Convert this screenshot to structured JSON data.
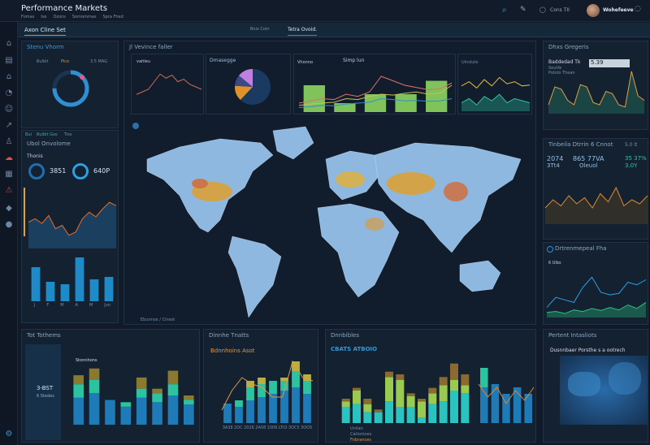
{
  "header": {
    "title": "Performance Markets",
    "subnav": [
      "Fomas",
      "Ise",
      "Ozons",
      "Somommas",
      "Spra Fhed"
    ],
    "notify_label": "Cons TII",
    "username": "Wohefeeve"
  },
  "tabbar": {
    "left_tab": "Axon Cline Set",
    "right_label": "Boix Coin",
    "right_tab": "Tetra Ovoid."
  },
  "gauge_panel": {
    "title": "Stenu Vhorm",
    "labels": [
      "Bulbit",
      "Pico",
      "3.5 MAG"
    ],
    "level": 0.75
  },
  "volume_panel": {
    "tabs": [
      "Bui",
      "Bulbit Gos",
      "Tiss"
    ],
    "title": "Ubol Onvolome",
    "subtitle": "Thonis",
    "kpi1": "3851",
    "kpi2": "640P",
    "area": [
      40,
      45,
      38,
      50,
      30,
      35,
      20,
      25,
      45,
      55,
      48,
      60,
      70,
      65
    ],
    "bars": [
      [
        70
      ],
      [
        40
      ],
      [
        35
      ],
      [
        90
      ],
      [
        45
      ],
      [
        50
      ]
    ],
    "bar_labels": [
      "J",
      "F",
      "M",
      "A",
      "M",
      "Jun"
    ]
  },
  "center": {
    "title": "Jl Vevince faller",
    "mini": [
      {
        "title": "vaitleu",
        "line": [
          30,
          35,
          40,
          55,
          70,
          62,
          68,
          55,
          60,
          50,
          45,
          40
        ]
      },
      {
        "title": "Dmasegge",
        "pie": [
          0.62,
          0.14,
          0.1,
          0.14
        ]
      },
      {
        "title": "Vhonno",
        "subtitle": "Simp lun",
        "lines": [
          [
            20,
            25,
            30,
            28,
            40,
            35,
            45,
            80,
            70,
            60,
            55,
            50,
            52,
            65
          ],
          [
            15,
            18,
            20,
            22,
            30,
            28,
            35,
            40,
            38,
            42,
            45,
            40,
            42,
            60
          ],
          [
            10,
            12,
            15,
            14,
            18,
            20,
            22,
            30,
            28,
            25,
            26,
            24,
            25,
            30
          ]
        ],
        "bars": [
          60,
          20,
          40,
          40,
          70
        ]
      },
      {
        "title": "Ulnsluto",
        "lines": [
          [
            60,
            70,
            55,
            75,
            60,
            80,
            65,
            70,
            60,
            62
          ],
          [
            20,
            30,
            15,
            35,
            25,
            40,
            20,
            30,
            25,
            20
          ]
        ]
      }
    ],
    "map_footer": "Ebunnox / Clnest"
  },
  "right1": {
    "title": "Dhxs Gregeris",
    "label1": "Baddedad Tk",
    "label2": "Seutfe",
    "label3": "Potsto Thean",
    "badge": "5.39",
    "line": [
      20,
      60,
      55,
      30,
      20,
      65,
      60,
      25,
      20,
      50,
      45,
      20,
      15,
      95,
      40,
      30
    ]
  },
  "right2": {
    "title": "Tinbeila Dtrrin 6 Cnnot",
    "value_label": "5.0 lt",
    "stats": [
      "2074",
      "3Tt4",
      "865 77VA",
      "Oleuol",
      "35 37%",
      "3.0Y"
    ],
    "line": [
      40,
      60,
      45,
      70,
      50,
      65,
      40,
      75,
      55,
      90,
      45,
      60,
      50,
      70
    ]
  },
  "right3": {
    "title": "Drtrenmepeal Fha",
    "subtitle": "6 Ulbs",
    "line": [
      20,
      40,
      35,
      30,
      60,
      80,
      50,
      45,
      48,
      70,
      65,
      75
    ],
    "area": [
      10,
      12,
      8,
      15,
      12,
      18,
      14,
      20,
      15,
      25,
      18,
      30
    ]
  },
  "bottom1": {
    "title": "Tot Tothems",
    "legend": "Stonnhons",
    "kpi": "3-BST",
    "sub": "6 Stedes",
    "bars": [
      [
        60,
        30,
        20
      ],
      [
        70,
        30,
        25
      ],
      [
        55,
        0,
        0
      ],
      [
        40,
        10,
        0
      ],
      [
        60,
        20,
        25
      ],
      [
        50,
        20,
        10
      ],
      [
        65,
        25,
        30
      ],
      [
        45,
        10,
        10
      ]
    ]
  },
  "bottom2": {
    "title": "Dinnhe Tnatts",
    "subtitle": "Bdnnhoins Asot",
    "bars": [
      [
        30,
        0,
        0
      ],
      [
        25,
        10,
        0
      ],
      [
        35,
        20,
        10
      ],
      [
        40,
        20,
        10
      ],
      [
        45,
        20,
        0
      ],
      [
        50,
        15,
        5
      ],
      [
        55,
        25,
        15
      ],
      [
        45,
        20,
        10
      ]
    ],
    "line": [
      20,
      50,
      70,
      60,
      55,
      40,
      40,
      95,
      70,
      65
    ],
    "x_labels": [
      "3A38",
      "2OC",
      "2026",
      "2A08",
      "1006",
      "LTIO",
      "3OC5",
      "3OO5"
    ]
  },
  "bottom3": {
    "title": "Dnnbibles",
    "subtitle": "CBATS ATBOIO",
    "bars": [
      [
        30,
        10,
        5
      ],
      [
        35,
        25,
        5
      ],
      [
        20,
        15,
        10
      ],
      [
        20,
        0,
        5
      ],
      [
        40,
        45,
        10
      ],
      [
        30,
        50,
        10
      ],
      [
        30,
        20,
        5
      ],
      [
        10,
        30,
        5
      ],
      [
        35,
        20,
        10
      ],
      [
        40,
        30,
        15
      ],
      [
        60,
        20,
        30
      ],
      [
        55,
        15,
        20
      ]
    ],
    "bars2": [
      [
        55,
        30
      ],
      [
        60,
        0
      ],
      [
        45,
        0
      ],
      [
        55,
        0
      ],
      [
        45,
        0
      ]
    ],
    "line": [
      60,
      40,
      55,
      30,
      50,
      35,
      55
    ],
    "legend": [
      "Unilan",
      "Cationioes",
      "Fnbrances"
    ]
  },
  "bottom4": {
    "title": "Pertent Intasliots",
    "subtitle": "Dusnnbaer Porsthe s a ootrech"
  },
  "colors": {
    "bg": "#101a28",
    "panel": "#132131",
    "accent": "#2f8fd0",
    "teal": "#2bc3c0",
    "green": "#7fc35a",
    "orange": "#e08a2a",
    "gold": "#9b7a2e",
    "map": "#8fb8e0"
  }
}
